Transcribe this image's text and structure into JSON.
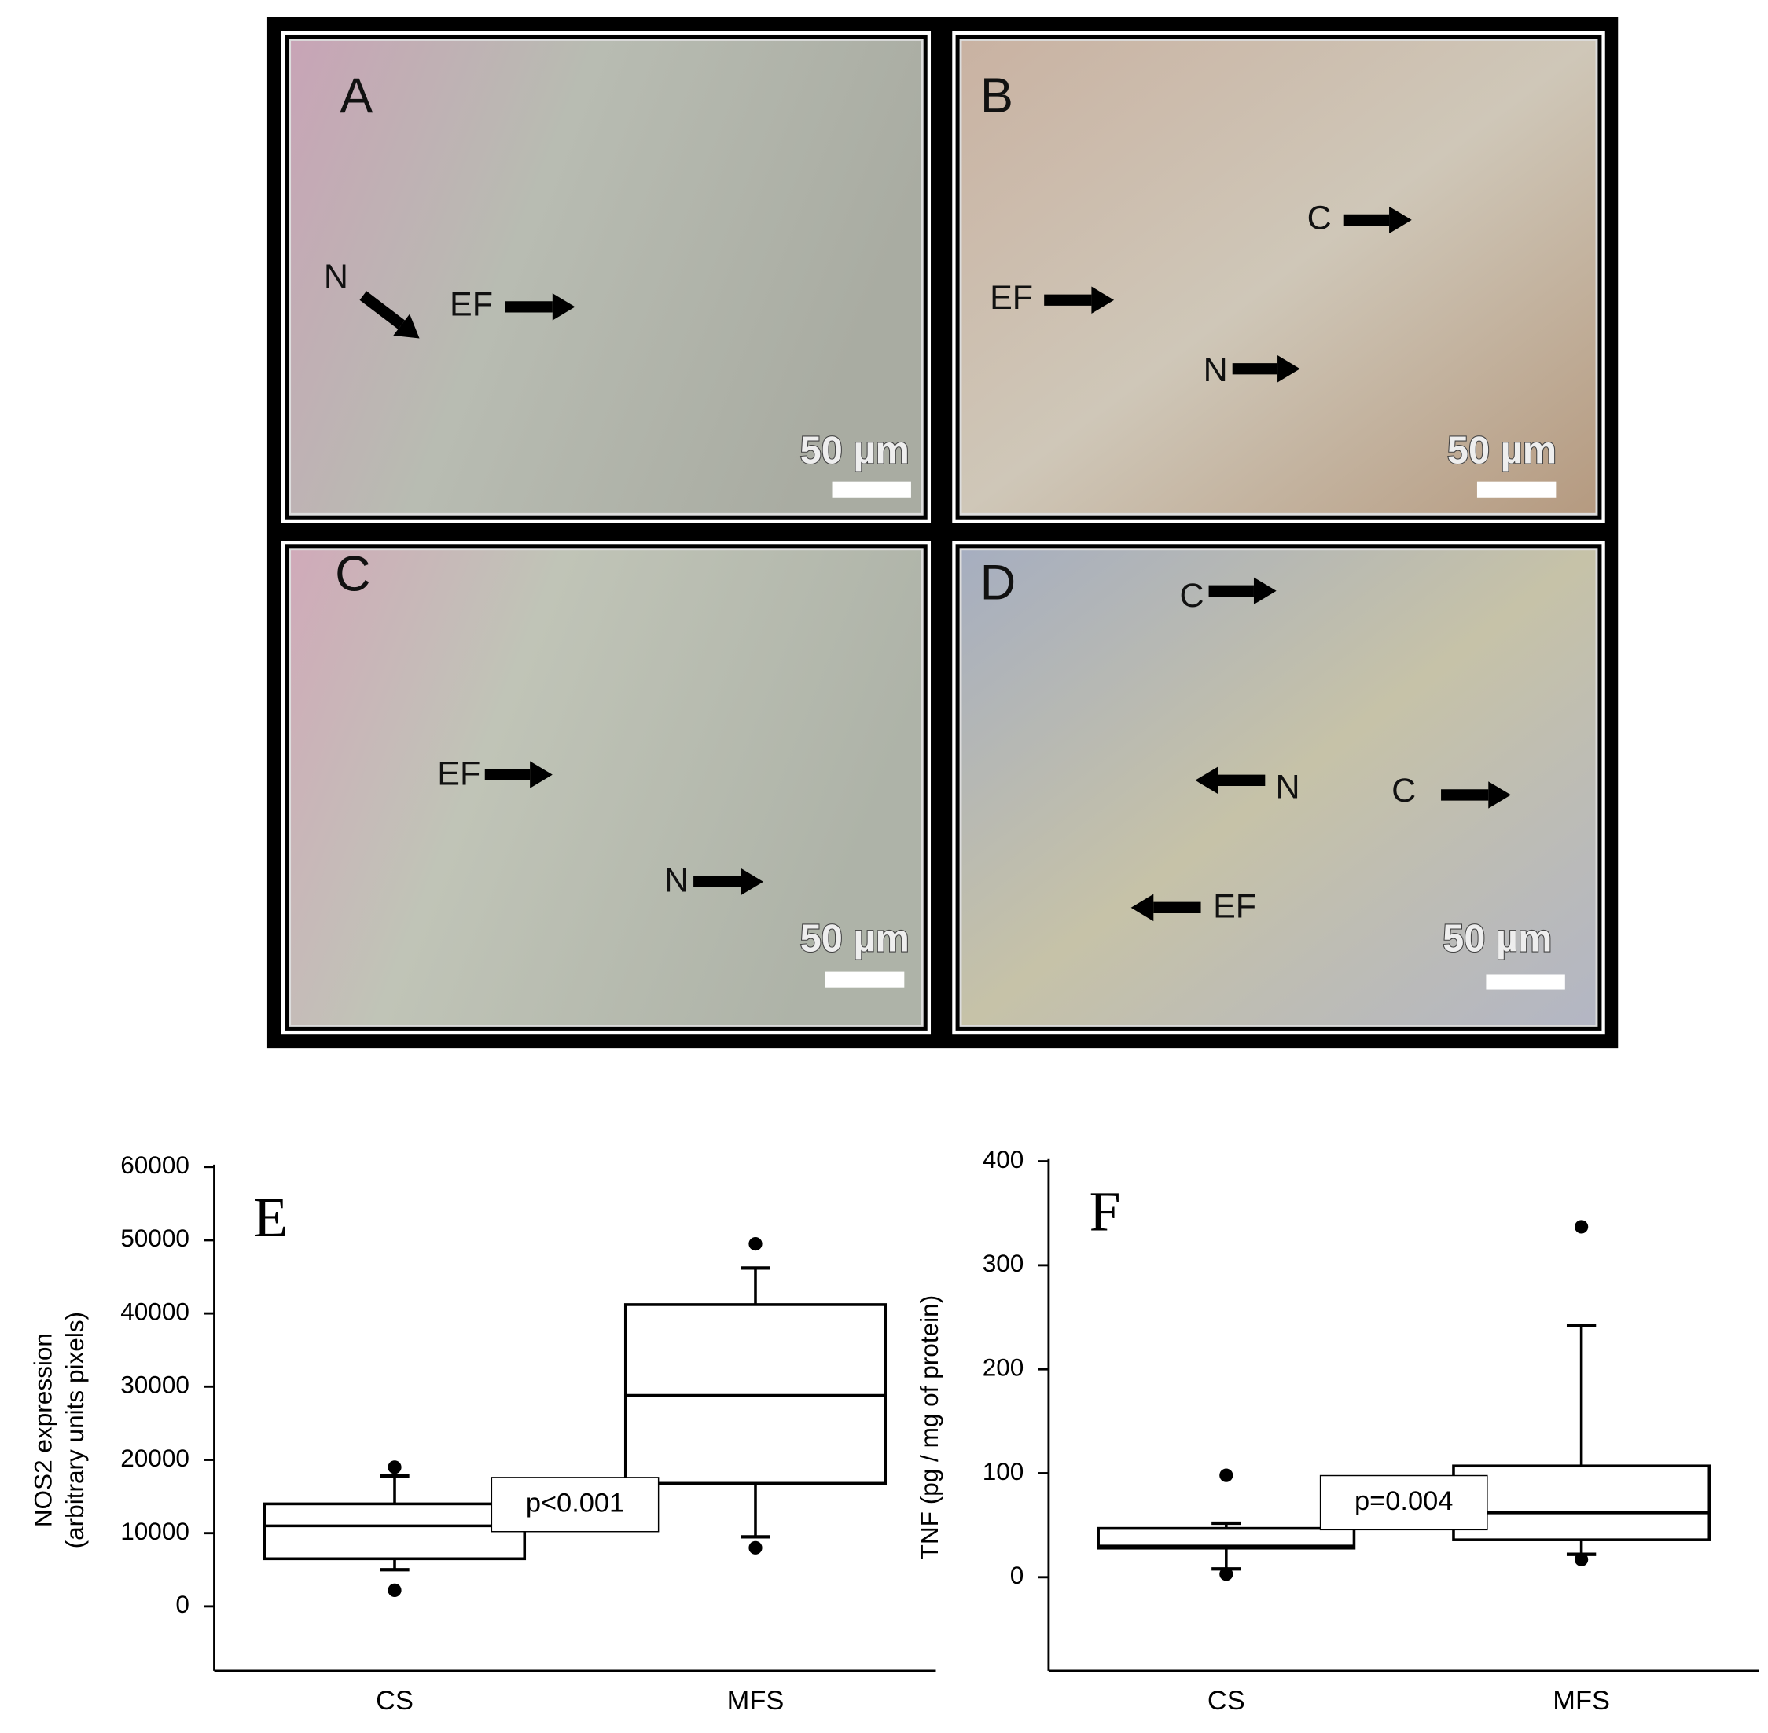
{
  "panels": [
    {
      "label": "A",
      "annotations": [
        "N",
        "EF"
      ],
      "scale_bar": "50 µm"
    },
    {
      "label": "B",
      "annotations": [
        "C",
        "EF",
        "N"
      ],
      "scale_bar": "50 µm"
    },
    {
      "label": "C",
      "annotations": [
        "EF",
        "N"
      ],
      "scale_bar": "50 µm"
    },
    {
      "label": "D",
      "annotations": [
        "C",
        "N",
        "C",
        "EF"
      ],
      "scale_bar": "50 µm"
    }
  ],
  "chart_data": [
    {
      "type": "box",
      "panel_label": "E",
      "y_label": [
        "NOS2 expression",
        "(arbitrary units pixels)"
      ],
      "categories": [
        "CS",
        "MFS"
      ],
      "boxes": [
        {
          "whisker_low": 5000,
          "q1": 6500,
          "median": 11000,
          "q3": 14000,
          "whisker_high": 17800,
          "outliers": [
            2200,
            19000
          ]
        },
        {
          "whisker_low": 9500,
          "q1": 16800,
          "median": 28800,
          "q3": 41200,
          "whisker_high": 46200,
          "outliers": [
            8000,
            49500
          ]
        }
      ],
      "annotation": "p<0.001",
      "ylim": [
        -8800,
        60000
      ],
      "yticks": [
        0,
        10000,
        20000,
        30000,
        40000,
        50000,
        60000
      ]
    },
    {
      "type": "box",
      "panel_label": "F",
      "y_label": [
        "TNF (pg / mg of protein)"
      ],
      "categories": [
        "CS",
        "MFS"
      ],
      "boxes": [
        {
          "whisker_low": 8,
          "q1": 28,
          "median": 30,
          "q3": 47,
          "whisker_high": 52,
          "outliers": [
            3,
            98
          ]
        },
        {
          "whisker_low": 22,
          "q1": 36,
          "median": 62,
          "q3": 107,
          "whisker_high": 242,
          "outliers": [
            17,
            337
          ]
        }
      ],
      "annotation": "p=0.004",
      "ylim": [
        -90,
        400
      ],
      "yticks": [
        0,
        100,
        200,
        300,
        400
      ]
    }
  ]
}
